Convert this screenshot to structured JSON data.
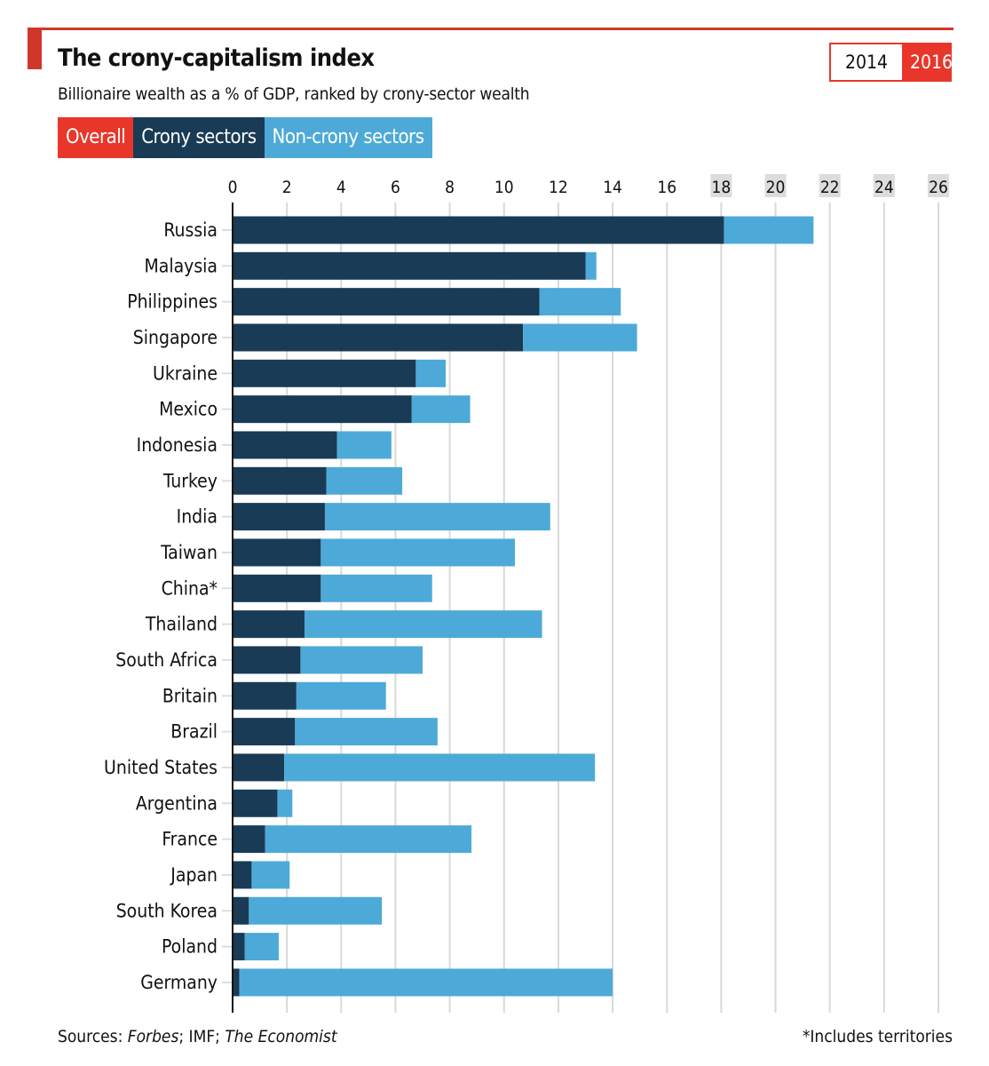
{
  "header": {
    "title": "The crony-capitalism index",
    "subtitle": "Billionaire wealth as a % of GDP, ranked by crony-sector wealth"
  },
  "legend": [
    {
      "label": "Overall",
      "color": "#e8372a"
    },
    {
      "label": "Crony sectors",
      "color": "#1a3b55"
    },
    {
      "label": "Non-crony sectors",
      "color": "#4daad8"
    }
  ],
  "year_toggle": {
    "options": [
      "2014",
      "2016"
    ],
    "selected": "2016"
  },
  "footer": {
    "sources_prefix": "Sources: ",
    "source1": "Forbes",
    "sep1": "; IMF; ",
    "source2": "The Economist",
    "note": "*Includes territories"
  },
  "colors": {
    "crony": "#1a3b55",
    "noncrony": "#4daad8",
    "accent": "#e8372a",
    "grid": "#d9d9d9",
    "highlight_tick_bg": "#dcdcdc"
  },
  "chart_data": {
    "type": "bar",
    "orientation": "horizontal",
    "stacked": true,
    "title": "The crony-capitalism index",
    "subtitle": "Billionaire wealth as a % of GDP, ranked by crony-sector wealth",
    "xlabel": "",
    "ylabel": "",
    "xlim": [
      0,
      26
    ],
    "xticks": [
      0,
      2,
      4,
      6,
      8,
      10,
      12,
      14,
      16,
      18,
      20,
      22,
      24,
      26
    ],
    "highlighted_ticks": [
      18,
      20,
      22,
      24,
      26
    ],
    "grid": true,
    "legend_position": "top-left",
    "categories": [
      "Russia",
      "Malaysia",
      "Philippines",
      "Singapore",
      "Ukraine",
      "Mexico",
      "Indonesia",
      "Turkey",
      "India",
      "Taiwan",
      "China*",
      "Thailand",
      "South Africa",
      "Britain",
      "Brazil",
      "United States",
      "Argentina",
      "France",
      "Japan",
      "South Korea",
      "Poland",
      "Germany"
    ],
    "series": [
      {
        "name": "Crony sectors",
        "values": [
          18.1,
          13.0,
          11.3,
          10.7,
          6.75,
          6.6,
          3.85,
          3.45,
          3.4,
          3.25,
          3.25,
          2.65,
          2.5,
          2.35,
          2.3,
          1.9,
          1.65,
          1.2,
          0.7,
          0.6,
          0.45,
          0.25
        ]
      },
      {
        "name": "Non-crony sectors",
        "values": [
          3.3,
          0.4,
          3.0,
          4.2,
          1.1,
          2.15,
          2.0,
          2.8,
          8.3,
          7.15,
          4.1,
          8.75,
          4.5,
          3.3,
          5.25,
          11.45,
          0.55,
          7.6,
          1.4,
          4.9,
          1.25,
          13.75
        ]
      }
    ]
  }
}
